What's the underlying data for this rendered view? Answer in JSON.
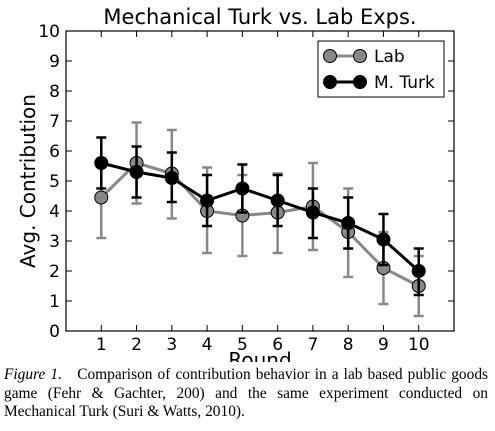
{
  "chart_data": {
    "type": "line",
    "title": "Mechanical Turk vs. Lab Exps.",
    "xlabel": "Round",
    "ylabel": "Avg. Contribution",
    "x": [
      1,
      2,
      3,
      4,
      5,
      6,
      7,
      8,
      9,
      10
    ],
    "xlim": [
      0,
      11
    ],
    "ylim": [
      0,
      10
    ],
    "xticks": [
      "1",
      "2",
      "3",
      "4",
      "5",
      "6",
      "7",
      "8",
      "9",
      "10"
    ],
    "yticks": [
      "0",
      "1",
      "2",
      "3",
      "4",
      "5",
      "6",
      "7",
      "8",
      "9",
      "10"
    ],
    "grid": false,
    "legend_position": "top-right",
    "series": [
      {
        "name": "Lab",
        "color": "#888888",
        "values": [
          4.45,
          5.6,
          5.25,
          4.0,
          3.85,
          3.95,
          4.15,
          3.3,
          2.1,
          1.5
        ],
        "err_low": [
          3.1,
          4.25,
          3.75,
          2.6,
          2.5,
          2.6,
          2.7,
          1.8,
          0.9,
          0.5
        ],
        "err_high": [
          5.75,
          6.95,
          6.7,
          5.45,
          5.2,
          5.25,
          5.6,
          4.75,
          3.3,
          2.5
        ]
      },
      {
        "name": "M. Turk",
        "color": "#000000",
        "values": [
          5.6,
          5.3,
          5.1,
          4.35,
          4.75,
          4.35,
          3.95,
          3.6,
          3.05,
          2.0
        ],
        "err_low": [
          4.75,
          4.45,
          4.3,
          3.5,
          3.95,
          3.5,
          3.1,
          2.75,
          2.2,
          1.2
        ],
        "err_high": [
          6.45,
          6.15,
          5.95,
          5.2,
          5.55,
          5.2,
          4.75,
          4.45,
          3.9,
          2.75
        ]
      }
    ]
  },
  "caption": {
    "label": "Figure 1.",
    "text": "Comparison of contribution behavior in a lab based public goods game (Fehr & Gachter, 200) and the same experiment conducted on Mechanical Turk (Suri & Watts, 2010)."
  }
}
